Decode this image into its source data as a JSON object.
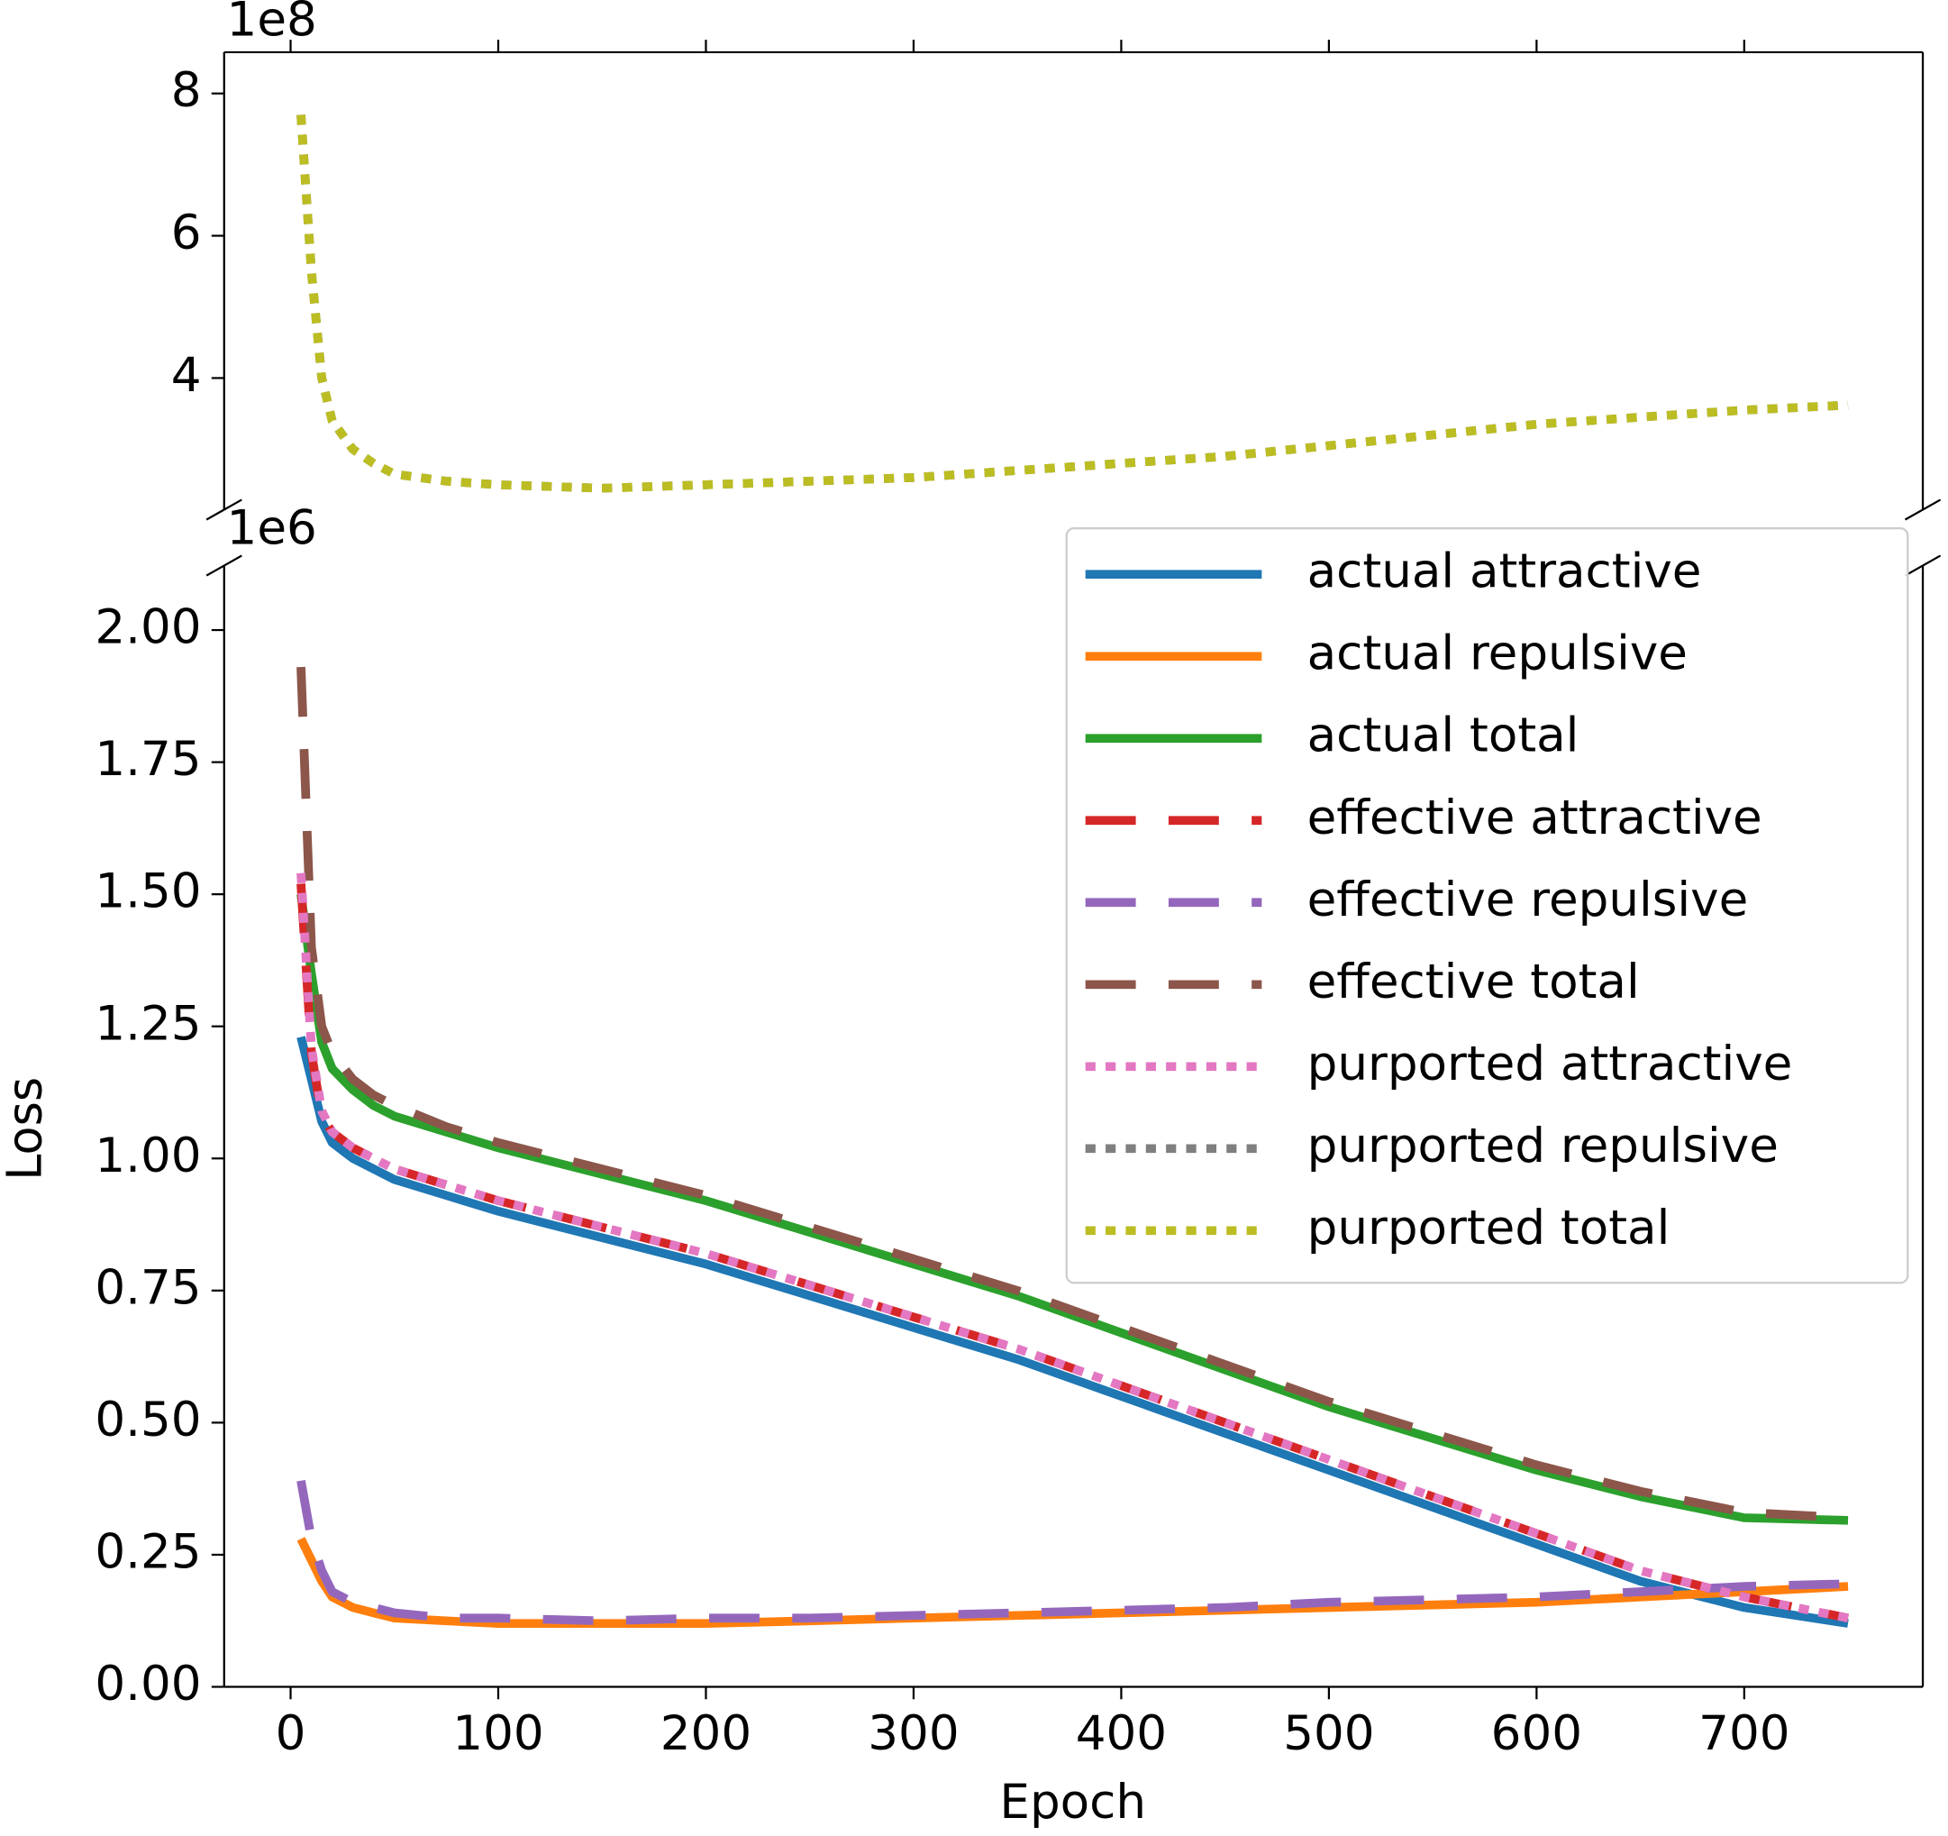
{
  "chart_data": [
    {
      "type": "line",
      "offset_label": "1e8",
      "x": [
        5,
        10,
        15,
        20,
        30,
        40,
        50,
        75,
        100,
        150,
        200,
        250,
        300,
        350,
        400,
        450,
        500,
        550,
        600,
        650,
        700,
        750
      ],
      "xlim": [
        -32,
        786
      ],
      "xticks": [
        0,
        100,
        200,
        300,
        400,
        500,
        600,
        700
      ],
      "ylim": [
        2.15,
        8.58
      ],
      "yticks": [
        4,
        6,
        8
      ],
      "series": [
        {
          "name": "purported repulsive",
          "color": "#7f7f7f",
          "style": "dotted",
          "values": [
            7.7,
            5.5,
            4.0,
            3.4,
            3.0,
            2.8,
            2.65,
            2.55,
            2.5,
            2.45,
            2.5,
            2.55,
            2.6,
            2.7,
            2.8,
            2.9,
            3.05,
            3.2,
            3.35,
            3.45,
            3.55,
            3.62
          ]
        },
        {
          "name": "purported total",
          "color": "#bcbd22",
          "style": "dotted",
          "values": [
            7.7,
            5.5,
            4.0,
            3.4,
            3.0,
            2.8,
            2.65,
            2.55,
            2.5,
            2.45,
            2.5,
            2.55,
            2.6,
            2.7,
            2.8,
            2.9,
            3.05,
            3.2,
            3.35,
            3.45,
            3.55,
            3.62
          ]
        }
      ]
    },
    {
      "type": "line",
      "offset_label": "1e6",
      "xlabel": "Epoch",
      "ylabel": "Loss",
      "legend": "upper right",
      "x": [
        5,
        10,
        15,
        20,
        30,
        40,
        50,
        75,
        100,
        150,
        200,
        250,
        300,
        350,
        400,
        450,
        500,
        550,
        600,
        650,
        700,
        750
      ],
      "xlim": [
        -32,
        786
      ],
      "xticks": [
        0,
        100,
        200,
        300,
        400,
        500,
        600,
        700
      ],
      "ylim": [
        0,
        2.122
      ],
      "yticks": [
        {
          "value": 0,
          "label": "0.00"
        },
        {
          "value": 0.25,
          "label": "0.25"
        },
        {
          "value": 0.5,
          "label": "0.50"
        },
        {
          "value": 0.75,
          "label": "0.75"
        },
        {
          "value": 1,
          "label": "1.00"
        },
        {
          "value": 1.25,
          "label": "1.25"
        },
        {
          "value": 1.5,
          "label": "1.50"
        },
        {
          "value": 1.75,
          "label": "1.75"
        },
        {
          "value": 2,
          "label": "2.00"
        }
      ],
      "series": [
        {
          "name": "actual attractive",
          "color": "#1f77b4",
          "style": "solid",
          "values": [
            1.23,
            1.15,
            1.07,
            1.03,
            1.0,
            0.98,
            0.96,
            0.93,
            0.9,
            0.85,
            0.8,
            0.74,
            0.68,
            0.62,
            0.55,
            0.48,
            0.41,
            0.34,
            0.27,
            0.2,
            0.15,
            0.12
          ]
        },
        {
          "name": "actual repulsive",
          "color": "#ff7f0e",
          "style": "solid",
          "values": [
            0.28,
            0.24,
            0.2,
            0.17,
            0.15,
            0.14,
            0.13,
            0.125,
            0.12,
            0.12,
            0.12,
            0.125,
            0.13,
            0.135,
            0.14,
            0.145,
            0.15,
            0.155,
            0.16,
            0.17,
            0.18,
            0.19
          ]
        },
        {
          "name": "actual total",
          "color": "#2ca02c",
          "style": "solid",
          "values": [
            1.5,
            1.35,
            1.22,
            1.17,
            1.13,
            1.1,
            1.08,
            1.05,
            1.02,
            0.97,
            0.92,
            0.86,
            0.8,
            0.74,
            0.67,
            0.6,
            0.53,
            0.47,
            0.41,
            0.36,
            0.32,
            0.315
          ]
        },
        {
          "name": "effective attractive",
          "color": "#d62728",
          "style": "dashed",
          "values": [
            1.52,
            1.2,
            1.08,
            1.05,
            1.02,
            1.0,
            0.98,
            0.95,
            0.92,
            0.87,
            0.82,
            0.76,
            0.7,
            0.64,
            0.57,
            0.5,
            0.43,
            0.36,
            0.29,
            0.22,
            0.17,
            0.13
          ]
        },
        {
          "name": "effective repulsive",
          "color": "#9467bd",
          "style": "dashed",
          "values": [
            0.39,
            0.28,
            0.22,
            0.18,
            0.16,
            0.15,
            0.14,
            0.13,
            0.13,
            0.125,
            0.13,
            0.13,
            0.135,
            0.14,
            0.145,
            0.15,
            0.16,
            0.165,
            0.17,
            0.18,
            0.19,
            0.195
          ]
        },
        {
          "name": "effective total",
          "color": "#8c564b",
          "style": "dashed",
          "values": [
            1.93,
            1.4,
            1.25,
            1.2,
            1.15,
            1.12,
            1.1,
            1.06,
            1.03,
            0.98,
            0.93,
            0.87,
            0.81,
            0.75,
            0.68,
            0.61,
            0.54,
            0.48,
            0.42,
            0.37,
            0.33,
            0.32
          ]
        },
        {
          "name": "purported attractive",
          "color": "#e377c2",
          "style": "dotted",
          "values": [
            1.54,
            1.21,
            1.09,
            1.05,
            1.02,
            1.0,
            0.98,
            0.95,
            0.92,
            0.87,
            0.82,
            0.76,
            0.7,
            0.64,
            0.57,
            0.5,
            0.43,
            0.36,
            0.29,
            0.22,
            0.17,
            0.13
          ]
        }
      ]
    }
  ]
}
